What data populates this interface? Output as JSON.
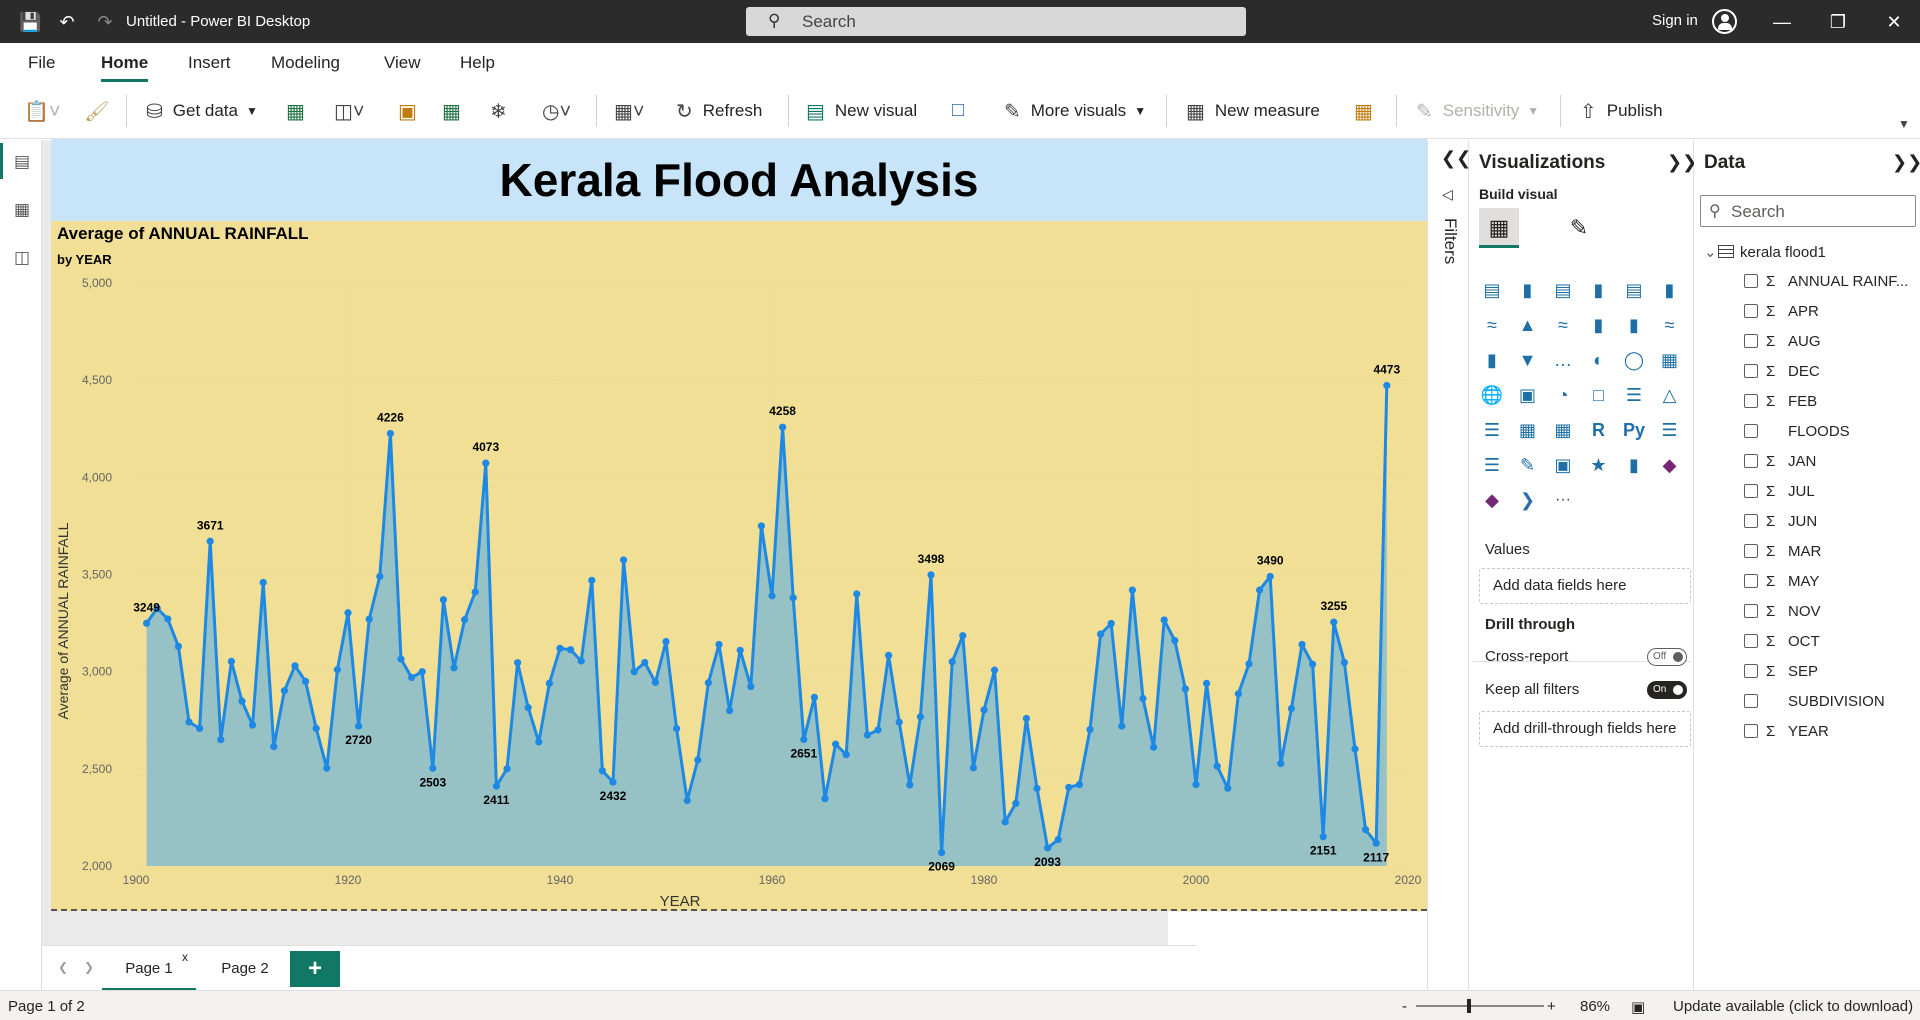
{
  "titlebar": {
    "title": "Untitled - Power BI Desktop",
    "search_placeholder": "Search",
    "sign_in": "Sign in",
    "icons": [
      "save-icon",
      "undo-icon",
      "redo-icon",
      "search-icon",
      "avatar-icon",
      "minimize-icon",
      "restore-icon",
      "close-icon"
    ]
  },
  "menu": {
    "tabs": [
      "File",
      "Home",
      "Insert",
      "Modeling",
      "View",
      "Help"
    ],
    "active": "Home"
  },
  "ribbon": {
    "get_data": "Get data",
    "refresh": "Refresh",
    "new_visual": "New visual",
    "more_visuals": "More visuals",
    "new_measure": "New measure",
    "sensitivity": "Sensitivity",
    "publish": "Publish"
  },
  "report": {
    "title": "Kerala Flood Analysis"
  },
  "chart_data": {
    "type": "area",
    "title": "Average of ANNUAL RAINFALL",
    "subtitle": "by YEAR",
    "xlabel": "YEAR",
    "ylabel": "Average of ANNUAL RAINFALL",
    "xlim": [
      1900,
      2020
    ],
    "ylim": [
      2000,
      5000
    ],
    "x_ticks": [
      "1900",
      "1920",
      "1940",
      "1960",
      "1980",
      "2000",
      "2020"
    ],
    "y_ticks": [
      "2,000",
      "2,500",
      "3,000",
      "3,500",
      "4,000",
      "4,500",
      "5,000"
    ],
    "line_color": "#1e88e5",
    "fill_color": "#90bfc7",
    "background": "#f0df95",
    "x": [
      1901,
      1902,
      1903,
      1904,
      1905,
      1906,
      1907,
      1908,
      1909,
      1910,
      1911,
      1912,
      1913,
      1914,
      1915,
      1916,
      1917,
      1918,
      1919,
      1920,
      1921,
      1922,
      1923,
      1924,
      1925,
      1926,
      1927,
      1928,
      1929,
      1930,
      1931,
      1932,
      1933,
      1934,
      1935,
      1936,
      1937,
      1938,
      1939,
      1940,
      1941,
      1942,
      1943,
      1944,
      1945,
      1946,
      1947,
      1948,
      1949,
      1950,
      1951,
      1952,
      1953,
      1954,
      1955,
      1956,
      1957,
      1958,
      1959,
      1960,
      1961,
      1962,
      1963,
      1964,
      1965,
      1966,
      1967,
      1968,
      1969,
      1970,
      1971,
      1972,
      1973,
      1974,
      1975,
      1976,
      1977,
      1978,
      1979,
      1980,
      1981,
      1982,
      1983,
      1984,
      1985,
      1986,
      1987,
      1988,
      1989,
      1990,
      1991,
      1992,
      1993,
      1994,
      1995,
      1996,
      1997,
      1998,
      1999,
      2000,
      2001,
      2002,
      2003,
      2004,
      2005,
      2006,
      2007,
      2008,
      2009,
      2010,
      2011,
      2012,
      2013,
      2014,
      2015,
      2016,
      2017,
      2018
    ],
    "values": [
      3249,
      3326,
      3271,
      3130,
      2741,
      2708,
      3671,
      2650,
      3053,
      2848,
      2725,
      3459,
      2614,
      2902,
      3030,
      2950,
      2708,
      2503,
      3010,
      3303,
      2720,
      3270,
      3490,
      4226,
      3065,
      2970,
      3000,
      2503,
      3370,
      3020,
      3267,
      3410,
      4073,
      2411,
      2500,
      3046,
      2815,
      2638,
      2940,
      3120,
      3113,
      3055,
      3470,
      2490,
      2432,
      3575,
      3000,
      3047,
      2945,
      3155,
      2707,
      2337,
      2546,
      2943,
      3140,
      2800,
      3110,
      2923,
      3750,
      3390,
      4258,
      3380,
      2651,
      2868,
      2346,
      2627,
      2573,
      3400,
      2674,
      2700,
      3084,
      2740,
      2417,
      2768,
      3498,
      2069,
      3051,
      3185,
      2505,
      2803,
      3008,
      2227,
      2322,
      2759,
      2399,
      2093,
      2136,
      2405,
      2419,
      2702,
      3193,
      3248,
      2720,
      3420,
      2862,
      2611,
      3266,
      3160,
      2911,
      2419,
      2940,
      2514,
      2400,
      2886,
      3040,
      3420,
      3490,
      2527,
      2810,
      3140,
      3038,
      2151,
      3255,
      3047,
      2602,
      2187,
      2117,
      4473
    ],
    "data_labels": [
      {
        "x": 1901,
        "text": "3249"
      },
      {
        "x": 1907,
        "text": "3671"
      },
      {
        "x": 1921,
        "text": "2720"
      },
      {
        "x": 1924,
        "text": "4226"
      },
      {
        "x": 1928,
        "text": "2503"
      },
      {
        "x": 1933,
        "text": "4073"
      },
      {
        "x": 1934,
        "text": "2411"
      },
      {
        "x": 1945,
        "text": "2432"
      },
      {
        "x": 1961,
        "text": "4258"
      },
      {
        "x": 1963,
        "text": "2651"
      },
      {
        "x": 1975,
        "text": "3498"
      },
      {
        "x": 1976,
        "text": "2069"
      },
      {
        "x": 1986,
        "text": "2093"
      },
      {
        "x": 2007,
        "text": "3490"
      },
      {
        "x": 2012,
        "text": "2151"
      },
      {
        "x": 2013,
        "text": "3255"
      },
      {
        "x": 2017,
        "text": "2117"
      },
      {
        "x": 2018,
        "text": "4473"
      }
    ],
    "grid": true
  },
  "pages": {
    "tabs": [
      "Page 1",
      "Page 2"
    ],
    "active": "Page 1",
    "close_glyph": "x",
    "add_glyph": "+"
  },
  "filters": {
    "label": "Filters"
  },
  "visualizations": {
    "title": "Visualizations",
    "build_visual": "Build visual",
    "values_label": "Values",
    "values_placeholder": "Add data fields here",
    "drill_through": "Drill through",
    "cross_report": "Cross-report",
    "cross_report_state": "Off",
    "keep_all_filters": "Keep all filters",
    "keep_all_filters_state": "On",
    "drill_placeholder": "Add drill-through fields here",
    "python_label": "Py",
    "r_label": "R",
    "more_glyph": "···"
  },
  "data_pane": {
    "title": "Data",
    "search_placeholder": "Search",
    "table_name": "kerala flood1",
    "fields": [
      {
        "name": "ANNUAL RAINF...",
        "sigma": true
      },
      {
        "name": "APR",
        "sigma": true
      },
      {
        "name": "AUG",
        "sigma": true
      },
      {
        "name": "DEC",
        "sigma": true
      },
      {
        "name": "FEB",
        "sigma": true
      },
      {
        "name": "FLOODS",
        "sigma": false
      },
      {
        "name": "JAN",
        "sigma": true
      },
      {
        "name": "JUL",
        "sigma": true
      },
      {
        "name": "JUN",
        "sigma": true
      },
      {
        "name": "MAR",
        "sigma": true
      },
      {
        "name": "MAY",
        "sigma": true
      },
      {
        "name": "NOV",
        "sigma": true
      },
      {
        "name": "OCT",
        "sigma": true
      },
      {
        "name": "SEP",
        "sigma": true
      },
      {
        "name": "SUBDIVISION",
        "sigma": false
      },
      {
        "name": "YEAR",
        "sigma": true
      }
    ]
  },
  "statusbar": {
    "page_info": "Page 1 of 2",
    "zoom_minus": "-",
    "zoom_plus": "+",
    "zoom": "86%",
    "update": "Update available (click to download)"
  }
}
